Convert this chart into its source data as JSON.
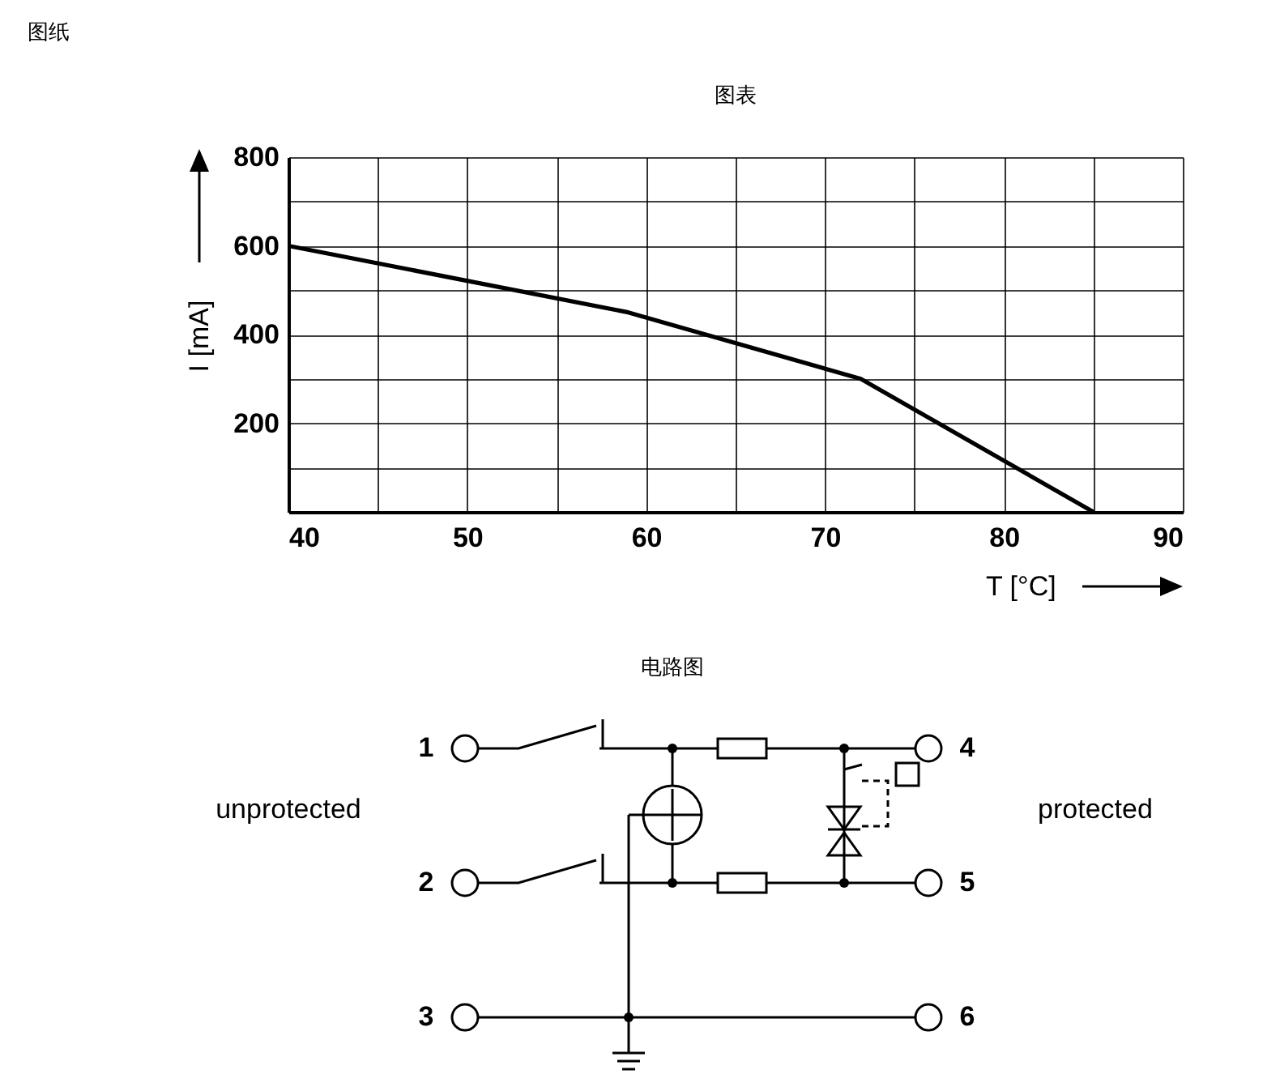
{
  "chart_data": {
    "type": "line",
    "title": "图表",
    "xlabel": "T [°C]",
    "ylabel": "I [mA]",
    "x": [
      40,
      59,
      72,
      85
    ],
    "series": [
      {
        "color": "#000000",
        "values": [
          600,
          450,
          300,
          0
        ]
      }
    ],
    "xlim": [
      40,
      90
    ],
    "xticks": [
      40,
      {
        "value": 45,
        "label": null
      },
      50,
      {
        "value": 55,
        "label": null
      },
      60,
      {
        "value": 65,
        "label": null
      },
      70,
      {
        "value": 75,
        "label": null
      },
      80,
      {
        "value": 85,
        "label": null
      },
      90
    ],
    "ylim": [
      0,
      800
    ],
    "yticks": [
      {
        "value": 100,
        "label": null
      },
      200,
      {
        "value": 300,
        "label": null
      },
      400,
      {
        "value": 500,
        "label": null
      },
      600,
      {
        "value": 700,
        "label": null
      },
      800
    ],
    "grid": true,
    "marker": "none",
    "line_style": "solid",
    "annotations": [
      "图纸",
      "电路图",
      "1",
      "2",
      "3",
      "4",
      "5",
      "6",
      "unprotected",
      "protected"
    ]
  }
}
